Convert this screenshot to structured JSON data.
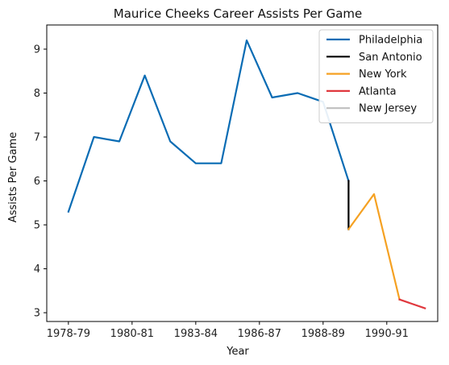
{
  "chart_data": {
    "type": "line",
    "title": "Maurice Cheeks Career Assists Per Game",
    "xlabel": "Year",
    "ylabel": "Assists Per Game",
    "ylim": [
      2.8,
      9.55
    ],
    "yticks": [
      3,
      4,
      5,
      6,
      7,
      8,
      9
    ],
    "x_range": [
      -0.85,
      14.5
    ],
    "x_ticks": [
      {
        "x": 0,
        "label": "1978-79"
      },
      {
        "x": 2.5,
        "label": "1980-81"
      },
      {
        "x": 5,
        "label": "1983-84"
      },
      {
        "x": 7.5,
        "label": "1986-87"
      },
      {
        "x": 10,
        "label": "1988-89"
      },
      {
        "x": 12.5,
        "label": "1990-91"
      }
    ],
    "grid": false,
    "legend_position": "top-right",
    "series": [
      {
        "name": "Philadelphia",
        "color": "#0a6cb4",
        "points": [
          [
            0,
            5.3
          ],
          [
            1,
            7.0
          ],
          [
            2,
            6.9
          ],
          [
            3,
            8.4
          ],
          [
            4,
            6.9
          ],
          [
            5,
            6.4
          ],
          [
            6,
            6.4
          ],
          [
            7,
            9.2
          ],
          [
            8,
            7.9
          ],
          [
            9,
            8.0
          ],
          [
            10,
            7.8
          ],
          [
            11,
            6.0
          ]
        ]
      },
      {
        "name": "San Antonio",
        "color": "#000000",
        "points": [
          [
            11,
            6.0
          ],
          [
            11,
            4.9
          ]
        ]
      },
      {
        "name": "New York",
        "color": "#f5a122",
        "points": [
          [
            11,
            4.9
          ],
          [
            12,
            5.7
          ],
          [
            13,
            3.3
          ]
        ]
      },
      {
        "name": "Atlanta",
        "color": "#e0383e",
        "points": [
          [
            13,
            3.3
          ],
          [
            14,
            3.1
          ]
        ]
      },
      {
        "name": "New Jersey",
        "color": "#bfbfbf",
        "points": []
      }
    ]
  }
}
